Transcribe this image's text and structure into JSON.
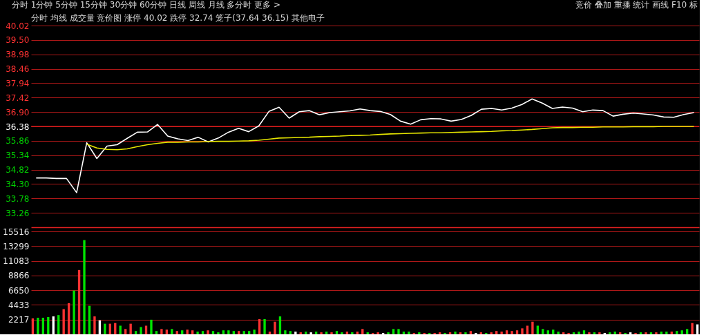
{
  "chart_data": [
    {
      "type": "line",
      "title": "分时 均线 成交量 竞价图 涨停 40.02 跌停 32.74 笼子(37.64 36.15) 其他电子",
      "annotations": [
        "分时 1分钟 5分钟 15分钟 30分钟 60分钟 日线 周线 月线 多分时 更多 >",
        "竞价 叠加 重播 统计 画线 F10 标"
      ],
      "categories": [
        null,
        null,
        null,
        null,
        null,
        null,
        null,
        null,
        null,
        null,
        null,
        null,
        null,
        null,
        null,
        null,
        null,
        null,
        null,
        null,
        null,
        null,
        null,
        null,
        null,
        null,
        null,
        null,
        null,
        null,
        null,
        null,
        null,
        null,
        null,
        null,
        null,
        null,
        null,
        null,
        null,
        null,
        null,
        null,
        null,
        null,
        null,
        null,
        null,
        null,
        null,
        null,
        null,
        null,
        null,
        null,
        null,
        null,
        null,
        null,
        null,
        null,
        null,
        null,
        null,
        null
      ],
      "series": [
        {
          "color": "#ffffff",
          "values": [
            34.52,
            34.52,
            34.5,
            34.5,
            33.99,
            35.79,
            35.22,
            35.67,
            35.72,
            35.95,
            36.17,
            36.18,
            36.45,
            36.03,
            35.93,
            35.87,
            35.99,
            35.82,
            35.96,
            36.17,
            36.31,
            36.19,
            36.4,
            36.92,
            37.07,
            36.68,
            36.91,
            36.95,
            36.8,
            36.88,
            36.91,
            36.94,
            37.01,
            36.95,
            36.92,
            36.81,
            36.57,
            36.46,
            36.62,
            36.66,
            36.65,
            36.57,
            36.63,
            36.78,
            37.0,
            37.03,
            36.97,
            37.04,
            37.17,
            37.37,
            37.22,
            37.03,
            37.08,
            37.04,
            36.91,
            36.97,
            36.95,
            36.75,
            36.82,
            36.86,
            36.83,
            36.79,
            36.72,
            36.71,
            36.81,
            36.88
          ]
        },
        {
          "color": "#e6e600",
          "values": [
            null,
            null,
            null,
            null,
            null,
            35.74,
            35.6,
            35.55,
            35.54,
            35.57,
            35.65,
            35.72,
            35.77,
            35.81,
            35.81,
            35.82,
            35.82,
            35.83,
            35.84,
            35.84,
            35.85,
            35.86,
            35.88,
            35.92,
            35.96,
            35.97,
            35.98,
            35.99,
            36.01,
            36.02,
            36.03,
            36.05,
            36.06,
            36.07,
            36.09,
            36.11,
            36.12,
            36.13,
            36.14,
            36.15,
            36.15,
            36.16,
            36.17,
            36.18,
            36.19,
            36.2,
            36.22,
            36.23,
            36.25,
            36.27,
            36.3,
            36.33,
            36.34,
            36.34,
            36.35,
            36.35,
            36.36,
            36.36,
            36.36,
            36.37,
            36.37,
            36.37,
            36.38,
            36.38,
            36.38,
            36.38
          ]
        }
      ],
      "ylim": [
        32.74,
        40.02
      ],
      "yticks": [
        33.26,
        33.78,
        {
          "value": 34.3,
          "label": "34.30"
        },
        34.82,
        35.34,
        35.86,
        36.38,
        {
          "value": 36.9,
          "label": "36.90"
        },
        37.42,
        37.94,
        38.46,
        38.98,
        {
          "value": 39.5,
          "label": "39.50"
        },
        40.02
      ],
      "grid": "y",
      "tick_labels": "y",
      "ref_lines": [
        {
          "axis": "y",
          "value": 36.38,
          "color": "#ff2020"
        }
      ]
    },
    {
      "type": "bar",
      "categories": [
        null,
        null,
        null,
        null,
        null,
        null,
        null,
        null,
        null,
        null,
        null,
        null,
        null,
        null,
        null,
        null,
        null,
        null,
        null,
        null,
        null,
        null,
        null,
        null,
        null,
        null,
        null,
        null,
        null,
        null,
        null,
        null,
        null,
        null,
        null,
        null,
        null,
        null,
        null,
        null,
        null,
        null,
        null,
        null,
        null,
        null,
        null,
        null,
        null,
        null,
        null,
        null,
        null,
        null,
        null,
        null,
        null,
        null,
        null,
        null,
        null,
        null,
        null,
        null,
        null,
        null,
        null,
        null,
        null,
        null,
        null,
        null,
        null,
        null,
        null,
        null,
        null,
        null,
        null,
        null,
        null,
        null,
        null,
        null,
        null,
        null,
        null,
        null,
        null,
        null,
        null,
        null,
        null,
        null,
        null,
        null,
        null,
        null,
        null,
        null,
        null,
        null,
        null,
        null,
        null,
        null,
        null,
        null,
        null,
        null,
        null,
        null,
        null,
        null,
        null,
        null,
        null,
        null,
        null,
        null,
        null,
        null,
        null,
        null,
        null,
        null,
        null,
        null,
        null,
        null
      ],
      "values": [
        2400,
        2500,
        2500,
        2600,
        2700,
        2900,
        3800,
        4700,
        6600,
        9700,
        14200,
        4300,
        2700,
        2100,
        1600,
        1600,
        1700,
        1300,
        800,
        1600,
        500,
        1100,
        1300,
        2200,
        500,
        800,
        700,
        800,
        500,
        600,
        700,
        600,
        400,
        500,
        600,
        500,
        300,
        600,
        600,
        500,
        500,
        500,
        500,
        700,
        2300,
        2300,
        400,
        1900,
        2700,
        600,
        500,
        400,
        300,
        400,
        300,
        400,
        300,
        400,
        300,
        500,
        300,
        400,
        300,
        400,
        800,
        300,
        200,
        300,
        200,
        300,
        800,
        800,
        400,
        400,
        200,
        300,
        200,
        200,
        200,
        300,
        200,
        300,
        400,
        300,
        300,
        500,
        200,
        300,
        200,
        300,
        500,
        400,
        600,
        500,
        600,
        900,
        1300,
        1900,
        1300,
        800,
        600,
        700,
        400,
        300,
        200,
        300,
        400,
        600,
        300,
        300,
        300,
        200,
        300,
        400,
        300,
        200,
        300,
        200,
        300,
        300,
        300,
        300,
        400,
        400,
        400,
        500,
        600,
        800,
        1700,
        1500
      ],
      "colors": [
        "#ff3232",
        "#00e600",
        "#00e600",
        "#00e600",
        "#ffffff",
        "#00e600",
        "#ff3232",
        "#ff3232",
        "#00e600",
        "#ff3232",
        "#00e600",
        "#00e600",
        "#ff3232",
        "#ffffff",
        "#00e600",
        "#ff3232",
        "#ff3232",
        "#00e600",
        "#ff3232",
        "#ff3232",
        "#00e600",
        "#00e600",
        "#ff3232",
        "#00e600",
        "#00e600",
        "#ff3232",
        "#ff3232",
        "#00e600",
        "#ff3232",
        "#00e600",
        "#ff3232",
        "#ff3232",
        "#00e600",
        "#00e600",
        "#ff3232",
        "#00e600",
        "#00e600",
        "#00e600",
        "#00e600",
        "#00e600",
        "#ff3232",
        "#00e600",
        "#00e600",
        "#00e600",
        "#ff3232",
        "#00e600",
        "#ff3232",
        "#ff3232",
        "#00e600",
        "#00e600",
        "#00e600",
        "#ffffff",
        "#ff3232",
        "#00e600",
        "#ffffff",
        "#00e600",
        "#ff3232",
        "#00e600",
        "#ff3232",
        "#00e600",
        "#00e600",
        "#ff3232",
        "#00e600",
        "#ff3232",
        "#ff3232",
        "#00e600",
        "#ff3232",
        "#ff3232",
        "#ffffff",
        "#00e600",
        "#00e600",
        "#00e600",
        "#00e600",
        "#00e600",
        "#ff3232",
        "#00e600",
        "#ff3232",
        "#00e600",
        "#ff3232",
        "#ff3232",
        "#00e600",
        "#ff3232",
        "#00e600",
        "#ff3232",
        "#00e600",
        "#ff3232",
        "#ffffff",
        "#ff3232",
        "#00e600",
        "#ff3232",
        "#ff3232",
        "#ff3232",
        "#ff3232",
        "#ff3232",
        "#ff3232",
        "#ff3232",
        "#ff3232",
        "#ff3232",
        "#00e600",
        "#00e600",
        "#00e600",
        "#00e600",
        "#00e600",
        "#ff3232",
        "#ff3232",
        "#00e600",
        "#00e600",
        "#00e600",
        "#ff3232",
        "#00e600",
        "#ff3232",
        "#ffffff",
        "#00e600",
        "#00e600",
        "#ff3232",
        "#00e600",
        "#ffffff",
        "#ff3232",
        "#00e600",
        "#ff3232",
        "#00e600",
        "#ff3232",
        "#00e600",
        "#00e600",
        "#ff3232",
        "#00e600",
        "#00e600",
        "#00e600",
        "#ff3232",
        "#ffffff"
      ],
      "ylim": [
        0,
        15516
      ],
      "yticks": [
        2217,
        4433,
        6650,
        8866,
        11083,
        13299,
        15516
      ],
      "grid": "y",
      "tick_labels": "y"
    }
  ]
}
